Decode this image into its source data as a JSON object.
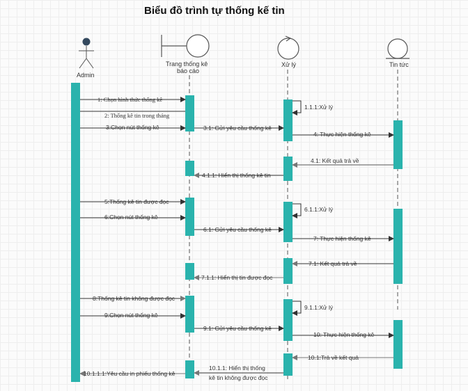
{
  "title": "Biểu đồ trình tự thống kế tin",
  "colors": {
    "activation": "#2ab3ad",
    "lifeline": "#555555",
    "arrow": "#333333",
    "return_arrow": "#666666",
    "actor_head": "#34495e"
  },
  "participants": {
    "admin": {
      "label": "Admin",
      "icon": "actor-icon"
    },
    "ui": {
      "label": "Trang thống kê",
      "label2": "báo cáo",
      "icon": "boundary-icon"
    },
    "xuly": {
      "label": "Xử lý",
      "icon": "control-icon"
    },
    "tintuc": {
      "label": "Tin tức",
      "icon": "entity-icon"
    }
  },
  "messages": {
    "m1": "1: Chọn hình thức thống kê",
    "m2": "2: Thống kê tin trong tháng",
    "m3": "3:Chọn nút thống kê",
    "m3_1": "3.1: Gửi yêu cầu thống kê",
    "m1_1_1": "1.1.1:Xử lý",
    "m4": "4: Thực hiện thống kê",
    "m4_1": "4.1: Kết quả trả về",
    "m4_1_1": "4.1.1: Hiển thị thống kê tin",
    "m5": "5:Thống kê tin được đọc",
    "m6": "6:Chọn nút thống kê",
    "m6_1_1": "6.1.1:Xử lý",
    "m6_1": "6.1: Gửi yêu cầu thống kê",
    "m7": "7: Thực hiện thống kê",
    "m7_1": "7.1: Kết quả trả về",
    "m7_1_1": "7.1.1: Hiển thị tin được đọc",
    "m8": "8:Thống kê tin không được đọc",
    "m9": "9:Chọn nút thống kê",
    "m9_1_1": "9.1.1:Xử lý",
    "m9_1": "9.1: Gửi yêu cầu thống kê",
    "m10": "10: Thực hiện thống kê",
    "m10_1": "10.1:Trả về kết quả",
    "m10_1_1_a": "10.1.1: Hiển thị thống",
    "m10_1_1_b": "kê tin không được đọc",
    "m10_1_1_1": "10.1.1.1:Yêu cầu in phiếu thống kê"
  }
}
